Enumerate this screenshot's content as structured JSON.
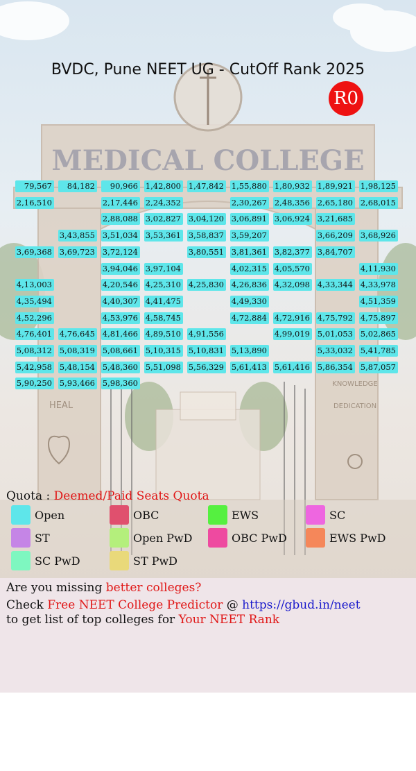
{
  "title": "BVDC, Pune NEET UG - CutOff Rank 2025",
  "round_badge": "R0",
  "background": {
    "sign_text": "MEDICAL COLLEGE",
    "pillar_left_text": "HEAL",
    "pillar_right_text_1": "KNOWLEDGE",
    "pillar_right_text_2": "DEDICATION"
  },
  "colors": {
    "cell_open": "#5ee6ea",
    "badge": "#ee1111",
    "accent_red": "#e01616",
    "link_blue": "#1a1acc"
  },
  "ranks": [
    [
      "79,567",
      "84,182",
      "90,966",
      "1,42,800",
      "1,47,842",
      "1,55,880",
      "1,80,932",
      "1,89,921",
      "1,98,125"
    ],
    [
      "2,16,510",
      "",
      "2,17,446",
      "2,24,352",
      "",
      "2,30,267",
      "2,48,356",
      "2,65,180",
      "2,68,015"
    ],
    [
      "",
      "",
      "2,88,088",
      "3,02,827",
      "3,04,120",
      "3,06,891",
      "3,06,924",
      "3,21,685",
      ""
    ],
    [
      "",
      "3,43,855",
      "3,51,034",
      "3,53,361",
      "3,58,837",
      "3,59,207",
      "",
      "3,66,209",
      "3,68,926"
    ],
    [
      "3,69,368",
      "3,69,723",
      "3,72,124",
      "",
      "3,80,551",
      "3,81,361",
      "3,82,377",
      "3,84,707",
      ""
    ],
    [
      "",
      "",
      "3,94,046",
      "3,97,104",
      "",
      "4,02,315",
      "4,05,570",
      "",
      "4,11,930"
    ],
    [
      "4,13,003",
      "",
      "4,20,546",
      "4,25,310",
      "4,25,830",
      "4,26,836",
      "4,32,098",
      "4,33,344",
      "4,33,978"
    ],
    [
      "4,35,494",
      "",
      "4,40,307",
      "4,41,475",
      "",
      "4,49,330",
      "",
      "",
      "4,51,359"
    ],
    [
      "4,52,296",
      "",
      "4,53,976",
      "4,58,745",
      "",
      "4,72,884",
      "4,72,916",
      "4,75,792",
      "4,75,897"
    ],
    [
      "4,76,401",
      "4,76,645",
      "4,81,466",
      "4,89,510",
      "4,91,556",
      "",
      "4,99,019",
      "5,01,053",
      "5,02,865"
    ],
    [
      "5,08,312",
      "5,08,319",
      "5,08,661",
      "5,10,315",
      "5,10,831",
      "5,13,890",
      "",
      "5,33,032",
      "5,41,785"
    ],
    [
      "5,42,958",
      "5,48,154",
      "5,48,360",
      "5,51,098",
      "5,56,329",
      "5,61,413",
      "5,61,416",
      "5,86,354",
      "5,87,057"
    ],
    [
      "5,90,250",
      "5,93,466",
      "5,98,360",
      "",
      "",
      "",
      "",
      "",
      ""
    ]
  ],
  "legend": {
    "quota_label": "Quota :",
    "quota_value": "Deemed/Paid Seats Quota",
    "items": [
      {
        "label": "Open",
        "color": "#5ee6ea"
      },
      {
        "label": "OBC",
        "color": "#e0506e"
      },
      {
        "label": "EWS",
        "color": "#55f040"
      },
      {
        "label": "SC",
        "color": "#ee66e0"
      },
      {
        "label": "ST",
        "color": "#c585e6"
      },
      {
        "label": "Open PwD",
        "color": "#b4ef7c"
      },
      {
        "label": "OBC PwD",
        "color": "#ee4aa0"
      },
      {
        "label": "EWS PwD",
        "color": "#f5875a"
      },
      {
        "label": "SC PwD",
        "color": "#7ef7c0"
      },
      {
        "label": "ST PwD",
        "color": "#e9d97a"
      }
    ]
  },
  "promo": {
    "line1_a": "Are you missing ",
    "line1_b": "better colleges?",
    "line2_a": "Check ",
    "line2_b": "Free NEET College Predictor",
    "line2_c": " @ ",
    "line2_d": "https://gbud.in/neet",
    "line3_a": "to get list of top colleges for ",
    "line3_b": "Your NEET Rank"
  }
}
